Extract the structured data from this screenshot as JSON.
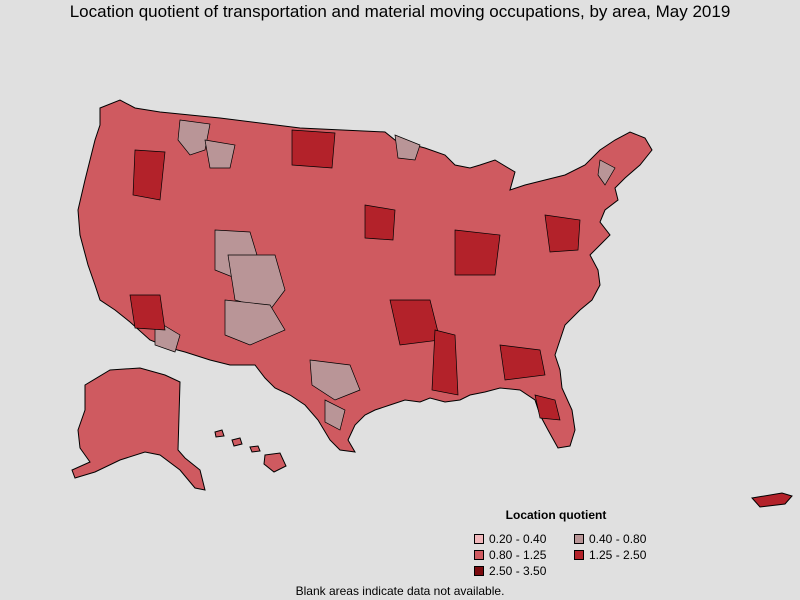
{
  "title": "Location quotient of transportation and material moving occupations, by area, May 2019",
  "legend": {
    "title": "Location quotient",
    "items": [
      {
        "label": "0.20 - 0.40",
        "color": "#f2b8bc"
      },
      {
        "label": "0.40 - 0.80",
        "color": "#b99597"
      },
      {
        "label": "0.80 - 1.25",
        "color": "#cf5a60"
      },
      {
        "label": "1.25 - 2.50",
        "color": "#b3222a"
      },
      {
        "label": "2.50 - 3.50",
        "color": "#7a0a0e"
      }
    ]
  },
  "footnote": "Blank areas indicate data not available.",
  "colors": {
    "background": "#e0e0e0",
    "base": "#cf5a60",
    "low": "#b99597",
    "high": "#b3222a",
    "very_high": "#7a0a0e",
    "border": "#000000"
  },
  "regions": [
    {
      "name": "contiguous-us",
      "class": "0.80 - 1.25"
    },
    {
      "name": "alaska",
      "class": "0.80 - 1.25"
    },
    {
      "name": "hawaii",
      "class": "0.80 - 1.25"
    },
    {
      "name": "puerto-rico",
      "class": "1.25 - 2.50"
    }
  ]
}
